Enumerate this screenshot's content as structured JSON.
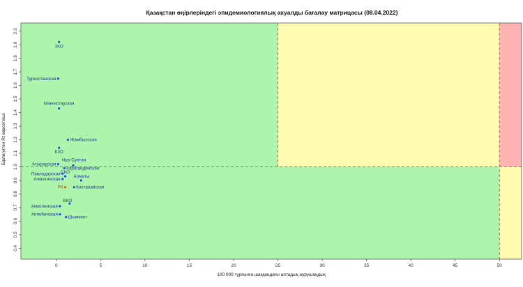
{
  "chart_data": {
    "type": "scatter",
    "title": "Қазақстан өңірлеріндегі эпидемиологиялық ахуалды бағалау матрицасы  (08.04.2022)",
    "xlabel": "100 000 тұрғынға шаққандағы аптадық аурушаңдық",
    "ylabel": "Бірлегуітен Rt көрсеткіші",
    "xlim": [
      -4,
      52.5
    ],
    "ylim": [
      0.32,
      2.06
    ],
    "xticks": [
      0,
      5,
      10,
      15,
      20,
      25,
      30,
      35,
      40,
      45,
      50
    ],
    "yticks": [
      0.4,
      0.5,
      0.6,
      0.7,
      0.8,
      0.9,
      1.0,
      1.1,
      1.2,
      1.3,
      1.4,
      1.5,
      1.6,
      1.7,
      1.8,
      1.9,
      2.0
    ],
    "thresholds": {
      "x": [
        25,
        50
      ],
      "y": 1.0
    },
    "zones": {
      "green": "#adf5ad",
      "yellow": "#fffbb0",
      "red": "#ffb4b4"
    },
    "point_color": "#1d4ed8",
    "highlight_color": "#ea580c",
    "points": [
      {
        "label": "ЗКО",
        "x": 0.3,
        "y": 1.92
      },
      {
        "label": "Туркестанская",
        "x": 0.2,
        "y": 1.65
      },
      {
        "label": "Мангистауская",
        "x": 0.3,
        "y": 1.43
      },
      {
        "label": "Жамбылская",
        "x": 1.3,
        "y": 1.2
      },
      {
        "label": "КЗО",
        "x": 0.3,
        "y": 1.14
      },
      {
        "label": "Нур-Султан",
        "x": 1.9,
        "y": 1.01
      },
      {
        "label": "Атырауская",
        "x": 0.2,
        "y": 1.02
      },
      {
        "label": "Карагандинская",
        "x": 0.9,
        "y": 0.99
      },
      {
        "label": "Павлодарская",
        "x": 0.7,
        "y": 0.95
      },
      {
        "label": "СКО",
        "x": 1.0,
        "y": 0.93
      },
      {
        "label": "Алматинская",
        "x": 0.7,
        "y": 0.91
      },
      {
        "label": "Алматы",
        "x": 2.8,
        "y": 0.9
      },
      {
        "label": "РК",
        "x": 1.0,
        "y": 0.85,
        "highlight": true
      },
      {
        "label": "Костанайская",
        "x": 2.0,
        "y": 0.85
      },
      {
        "label": "ВКО",
        "x": 1.5,
        "y": 0.73
      },
      {
        "label": "Акмолинская",
        "x": 0.4,
        "y": 0.71
      },
      {
        "label": "Актюбинская",
        "x": 0.4,
        "y": 0.65
      },
      {
        "label": "Шымкент",
        "x": 1.1,
        "y": 0.63
      }
    ]
  }
}
